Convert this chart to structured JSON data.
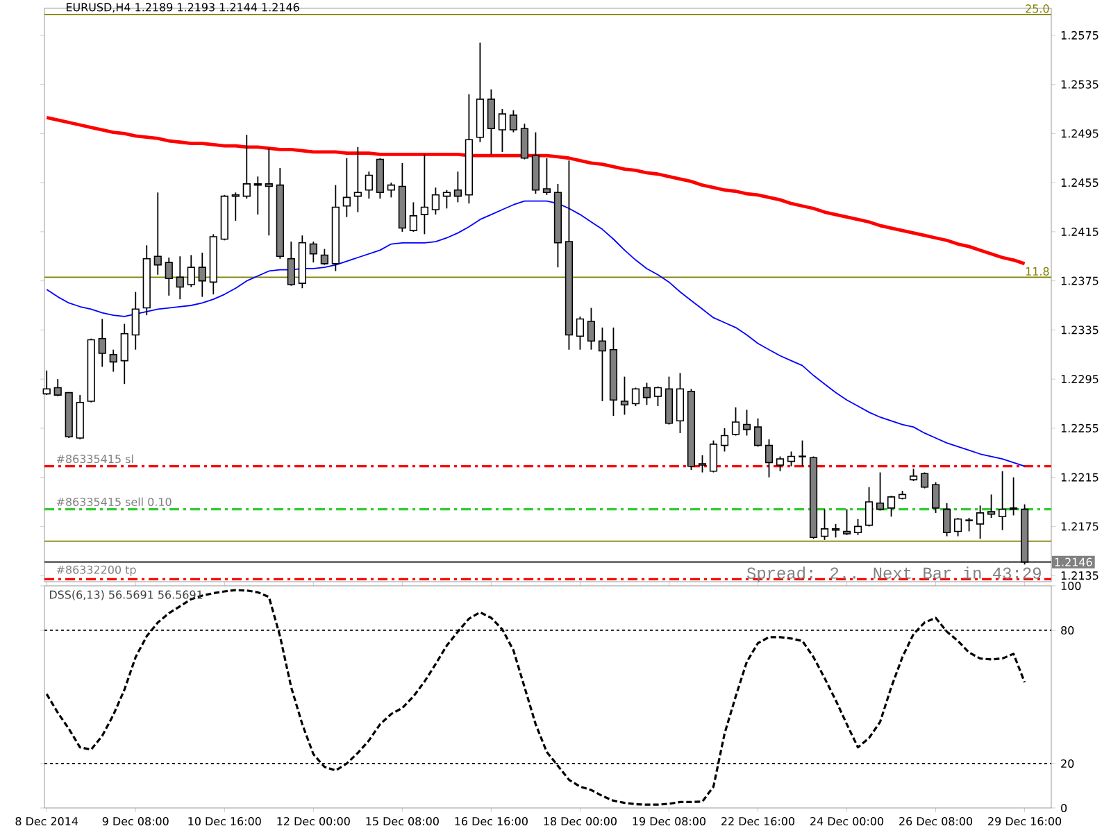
{
  "chart_data": [
    {
      "type": "candlestick",
      "title": "EURUSD,H4 1.2189 1.2193 1.2144 1.2146",
      "categories": [
        null,
        null,
        null,
        null,
        null,
        null,
        null,
        null,
        null,
        null,
        null,
        null,
        null,
        null,
        null,
        null,
        null,
        null,
        null,
        null,
        null,
        null,
        null,
        null,
        null,
        null,
        null,
        null,
        null,
        null,
        null,
        null,
        null,
        null,
        null,
        null,
        null,
        null,
        null,
        null,
        null,
        null,
        null,
        null,
        null,
        null,
        null,
        null,
        null,
        null,
        null,
        null,
        null,
        null,
        null,
        null,
        null,
        null,
        null,
        null,
        null,
        null,
        null,
        null,
        null,
        null,
        null,
        null,
        null,
        null,
        null,
        null,
        null,
        null,
        null,
        null,
        null,
        null,
        null,
        null,
        null,
        null,
        null,
        null,
        null,
        null,
        null,
        null,
        null
      ],
      "ohlc": [
        [
          1.2283,
          1.2302,
          1.2282,
          1.2287
        ],
        [
          1.2288,
          1.2295,
          1.2281,
          1.2282
        ],
        [
          1.2284,
          1.2284,
          1.2247,
          1.2248
        ],
        [
          1.2247,
          1.2282,
          1.2246,
          1.2276
        ],
        [
          1.2277,
          1.2328,
          1.2276,
          1.2327
        ],
        [
          1.2328,
          1.2344,
          1.2305,
          1.2316
        ],
        [
          1.2315,
          1.2319,
          1.2301,
          1.2309
        ],
        [
          1.231,
          1.234,
          1.2291,
          1.2332
        ],
        [
          1.2331,
          1.2366,
          1.2319,
          1.2352
        ],
        [
          1.2353,
          1.2404,
          1.2347,
          1.2393
        ],
        [
          1.2395,
          1.2447,
          1.238,
          1.2388
        ],
        [
          1.239,
          1.2394,
          1.2363,
          1.2377
        ],
        [
          1.2378,
          1.2395,
          1.236,
          1.237
        ],
        [
          1.2372,
          1.2396,
          1.237,
          1.2386
        ],
        [
          1.2386,
          1.2398,
          1.2362,
          1.2375
        ],
        [
          1.2374,
          1.2413,
          1.2364,
          1.2411
        ],
        [
          1.2409,
          1.2445,
          1.2408,
          1.2444
        ],
        [
          1.2444,
          1.2447,
          1.2424,
          1.2445
        ],
        [
          1.2444,
          1.2494,
          1.2442,
          1.2454
        ],
        [
          1.2454,
          1.246,
          1.2429,
          1.2453
        ],
        [
          1.2454,
          1.2483,
          1.2412,
          1.2452
        ],
        [
          1.2453,
          1.2467,
          1.2393,
          1.2395
        ],
        [
          1.2393,
          1.2407,
          1.2371,
          1.2372
        ],
        [
          1.2373,
          1.2412,
          1.2369,
          1.2406
        ],
        [
          1.2405,
          1.2407,
          1.239,
          1.2397
        ],
        [
          1.2396,
          1.2401,
          1.2388,
          1.2389
        ],
        [
          1.2389,
          1.2453,
          1.2383,
          1.2435
        ],
        [
          1.2436,
          1.2475,
          1.2427,
          1.2443
        ],
        [
          1.2444,
          1.2484,
          1.2431,
          1.2447
        ],
        [
          1.2449,
          1.2464,
          1.2442,
          1.2461
        ],
        [
          1.2474,
          1.2475,
          1.2442,
          1.2447
        ],
        [
          1.2449,
          1.2455,
          1.2443,
          1.2453
        ],
        [
          1.2452,
          1.2471,
          1.2415,
          1.2418
        ],
        [
          1.2416,
          1.2439,
          1.2415,
          1.2428
        ],
        [
          1.2429,
          1.2478,
          1.2413,
          1.2435
        ],
        [
          1.2433,
          1.2451,
          1.2429,
          1.2445
        ],
        [
          1.2444,
          1.2449,
          1.2434,
          1.2447
        ],
        [
          1.2449,
          1.2464,
          1.2439,
          1.2444
        ],
        [
          1.2445,
          1.2527,
          1.2438,
          1.249
        ],
        [
          1.2492,
          1.2569,
          1.2488,
          1.2523
        ],
        [
          1.2523,
          1.2531,
          1.2478,
          1.2499
        ],
        [
          1.2498,
          1.2515,
          1.248,
          1.2511
        ],
        [
          1.251,
          1.2514,
          1.2496,
          1.2498
        ],
        [
          1.2499,
          1.2503,
          1.2474,
          1.2475
        ],
        [
          1.2477,
          1.2496,
          1.2446,
          1.2449
        ],
        [
          1.245,
          1.2475,
          1.2445,
          1.2447
        ],
        [
          1.2447,
          1.2454,
          1.2386,
          1.2406
        ],
        [
          1.2407,
          1.2473,
          1.2319,
          1.2331
        ],
        [
          1.233,
          1.2346,
          1.2319,
          1.2344
        ],
        [
          1.2342,
          1.2353,
          1.2319,
          1.2326
        ],
        [
          1.2326,
          1.2337,
          1.2277,
          1.2318
        ],
        [
          1.2319,
          1.2337,
          1.2265,
          1.2278
        ],
        [
          1.2277,
          1.2297,
          1.2266,
          1.2274
        ],
        [
          1.2275,
          1.2288,
          1.2273,
          1.2287
        ],
        [
          1.2288,
          1.2292,
          1.2274,
          1.228
        ],
        [
          1.2281,
          1.2289,
          1.2273,
          1.2288
        ],
        [
          1.2287,
          1.2297,
          1.2258,
          1.2259
        ],
        [
          1.2261,
          1.23,
          1.2251,
          1.2287
        ],
        [
          1.2285,
          1.2287,
          1.2221,
          1.2224
        ],
        [
          1.2225,
          1.2233,
          1.2219,
          1.2226
        ],
        [
          1.222,
          1.2245,
          1.2219,
          1.2242
        ],
        [
          1.2241,
          1.2255,
          1.2236,
          1.2249
        ],
        [
          1.225,
          1.2272,
          1.2249,
          1.226
        ],
        [
          1.2258,
          1.227,
          1.2249,
          1.2254
        ],
        [
          1.2256,
          1.2263,
          1.224,
          1.2241
        ],
        [
          1.2241,
          1.2246,
          1.2215,
          1.2227
        ],
        [
          1.2225,
          1.2232,
          1.222,
          1.223
        ],
        [
          1.2228,
          1.2236,
          1.2224,
          1.2232
        ],
        [
          1.2232,
          1.2245,
          1.2224,
          1.2232
        ],
        [
          1.2231,
          1.2232,
          1.2165,
          1.2166
        ],
        [
          1.2167,
          1.2189,
          1.2164,
          1.2173
        ],
        [
          1.2173,
          1.2177,
          1.2166,
          1.2172
        ],
        [
          1.2171,
          1.2189,
          1.2168,
          1.2169
        ],
        [
          1.217,
          1.2181,
          1.2168,
          1.2175
        ],
        [
          1.2176,
          1.2207,
          1.2175,
          1.2195
        ],
        [
          1.2194,
          1.2219,
          1.2188,
          1.2189
        ],
        [
          1.219,
          1.22,
          1.2183,
          1.2199
        ],
        [
          1.2198,
          1.2204,
          1.2197,
          1.2201
        ],
        [
          1.2213,
          1.2222,
          1.2212,
          1.2216
        ],
        [
          1.2218,
          1.2219,
          1.2206,
          1.2207
        ],
        [
          1.2209,
          1.2211,
          1.2186,
          1.219
        ],
        [
          1.2189,
          1.2194,
          1.2167,
          1.217
        ],
        [
          1.2171,
          1.2182,
          1.2167,
          1.2181
        ],
        [
          1.218,
          1.2182,
          1.2171,
          1.218
        ],
        [
          1.2177,
          1.2192,
          1.2165,
          1.2186
        ],
        [
          1.2187,
          1.2201,
          1.2182,
          1.2185
        ],
        [
          1.2183,
          1.222,
          1.2172,
          1.2189
        ],
        [
          1.2189,
          1.2215,
          1.2184,
          1.219
        ],
        [
          1.2189,
          1.2193,
          1.2144,
          1.2146
        ]
      ],
      "series": [
        {
          "type": "line",
          "color": "#ff0000",
          "values": [
            1.2508,
            1.2506,
            1.2504,
            1.2502,
            1.25,
            1.2498,
            1.2496,
            1.2495,
            1.2493,
            1.2492,
            1.2491,
            1.2489,
            1.2488,
            1.2487,
            1.2487,
            1.2486,
            1.2485,
            1.2485,
            1.2484,
            1.2484,
            1.2483,
            1.2482,
            1.2482,
            1.2481,
            1.248,
            1.248,
            1.248,
            1.2479,
            1.2479,
            1.2479,
            1.2478,
            1.2478,
            1.2478,
            1.2478,
            1.2478,
            1.2478,
            1.2478,
            1.2478,
            1.2477,
            1.2477,
            1.2477,
            1.2477,
            1.2477,
            1.2477,
            1.2477,
            1.2477,
            1.2476,
            1.2475,
            1.2473,
            1.2471,
            1.247,
            1.2468,
            1.2466,
            1.2465,
            1.2463,
            1.2462,
            1.246,
            1.2458,
            1.2456,
            1.2453,
            1.2451,
            1.2449,
            1.2448,
            1.2446,
            1.2445,
            1.2443,
            1.2441,
            1.2438,
            1.2436,
            1.2434,
            1.2431,
            1.2429,
            1.2427,
            1.2425,
            1.2423,
            1.242,
            1.2418,
            1.2416,
            1.2414,
            1.2412,
            1.241,
            1.2408,
            1.2405,
            1.2403,
            1.24,
            1.2397,
            1.2394,
            1.2392,
            1.2389
          ]
        },
        {
          "type": "line",
          "color": "#0000ff",
          "values": [
            1.2368,
            1.2362,
            1.2357,
            1.2354,
            1.2352,
            1.2349,
            1.2347,
            1.2346,
            1.2348,
            1.235,
            1.2352,
            1.2353,
            1.2354,
            1.2355,
            1.2357,
            1.236,
            1.2364,
            1.2369,
            1.2375,
            1.2379,
            1.2383,
            1.2384,
            1.2384,
            1.2385,
            1.2385,
            1.2386,
            1.2388,
            1.2391,
            1.2394,
            1.2397,
            1.24,
            1.2405,
            1.2406,
            1.2406,
            1.2406,
            1.2407,
            1.241,
            1.2414,
            1.2419,
            1.2425,
            1.2429,
            1.2433,
            1.2437,
            1.244,
            1.244,
            1.244,
            1.2438,
            1.2434,
            1.2429,
            1.2423,
            1.2417,
            1.2409,
            1.24,
            1.2392,
            1.2385,
            1.238,
            1.2374,
            1.2366,
            1.2359,
            1.2352,
            1.2345,
            1.2341,
            1.2337,
            1.2331,
            1.2324,
            1.2319,
            1.2314,
            1.231,
            1.2306,
            1.2298,
            1.2291,
            1.2284,
            1.2278,
            1.2273,
            1.2268,
            1.2264,
            1.2261,
            1.2258,
            1.2256,
            1.2251,
            1.2247,
            1.2243,
            1.224,
            1.2237,
            1.2234,
            1.2232,
            1.223,
            1.2227,
            1.2224
          ]
        }
      ],
      "ylim": [
        1.213,
        1.2597
      ],
      "yticks": [
        1.2135,
        1.2175,
        1.2215,
        1.2255,
        1.2295,
        1.2335,
        1.2375,
        1.2415,
        1.2455,
        1.2495,
        1.2535,
        1.2575
      ],
      "ref_lines": [
        {
          "axis": "y",
          "value": 1.2592,
          "color": "#808000",
          "line_style": "solid"
        },
        {
          "axis": "y",
          "value": 1.2378,
          "color": "#808000",
          "line_style": "solid"
        },
        {
          "axis": "y",
          "value": 1.2163,
          "color": "#808000",
          "line_style": "solid"
        },
        {
          "axis": "y",
          "value": 1.2146,
          "label": "1.2146",
          "color": "#000000",
          "line_style": "solid"
        },
        {
          "axis": "y",
          "value": 1.2224,
          "label": "#86335415 sl",
          "color": "#ff0000",
          "line_style": "dashed"
        },
        {
          "axis": "y",
          "value": 1.2189,
          "label": "#86335415 sell 0.10",
          "color": "#32cd32",
          "line_style": "dashed"
        },
        {
          "axis": "y",
          "value": 1.2132,
          "label": "#86332200 tp",
          "color": "#ff0000",
          "line_style": "dashed"
        }
      ],
      "annotations": [
        "Spread: 2.. Next Bar in 43:29",
        {
          "text": "25.0",
          "y": 1.2592
        },
        {
          "text": "11.8",
          "y": 1.2378
        }
      ],
      "tick_labels": "y"
    },
    {
      "type": "line",
      "title": "DSS(6,13) 56.5691 56.5691",
      "categories": [
        "8 Dec 2014",
        null,
        null,
        null,
        null,
        null,
        null,
        null,
        "9 Dec 08:00",
        null,
        null,
        null,
        null,
        null,
        null,
        null,
        "10 Dec 16:00",
        null,
        null,
        null,
        null,
        null,
        null,
        null,
        "12 Dec 00:00",
        null,
        null,
        null,
        null,
        null,
        null,
        null,
        "15 Dec 08:00",
        null,
        null,
        null,
        null,
        null,
        null,
        null,
        "16 Dec 16:00",
        null,
        null,
        null,
        null,
        null,
        null,
        null,
        "18 Dec 00:00",
        null,
        null,
        null,
        null,
        null,
        null,
        null,
        "19 Dec 08:00",
        null,
        null,
        null,
        null,
        null,
        null,
        null,
        "22 Dec 16:00",
        null,
        null,
        null,
        null,
        null,
        null,
        null,
        "24 Dec 00:00",
        null,
        null,
        null,
        null,
        null,
        null,
        null,
        "26 Dec 08:00",
        null,
        null,
        null,
        null,
        null,
        null,
        null,
        "29 Dec 16:00"
      ],
      "series": [
        {
          "color": "#000000",
          "values": [
            51.3,
            42.9,
            35.6,
            27.3,
            26.3,
            32.5,
            41.9,
            53.3,
            67.9,
            77.3,
            83.5,
            87.7,
            90.8,
            94.0,
            95.6,
            96.7,
            97.5,
            98.1,
            97.9,
            97.1,
            95.0,
            77.3,
            54.4,
            37.7,
            24.2,
            18.5,
            16.9,
            20.0,
            24.8,
            30.4,
            37.7,
            42.3,
            45.0,
            50.2,
            56.9,
            64.8,
            73.1,
            79.4,
            85.2,
            88.1,
            85.6,
            80.4,
            71.0,
            54.4,
            37.7,
            25.2,
            19.0,
            12.7,
            9.6,
            8.1,
            5.4,
            3.3,
            2.3,
            1.7,
            1.5,
            1.5,
            1.9,
            2.7,
            2.7,
            2.9,
            9.6,
            33.5,
            50.2,
            65.8,
            74.2,
            76.9,
            76.9,
            76.3,
            75.2,
            67.9,
            58.5,
            48.5,
            37.7,
            27.3,
            31.5,
            38.8,
            54.4,
            67.9,
            78.3,
            83.5,
            85.6,
            79.4,
            75.2,
            70.0,
            67.3,
            66.9,
            67.3,
            69.4,
            56.6
          ]
        }
      ],
      "line_style": "dashed",
      "ylim": [
        0,
        100
      ],
      "yticks": [
        0,
        20,
        80,
        100
      ],
      "ref_lines": [
        {
          "axis": "y",
          "value": 20,
          "color": "#000000",
          "line_style": "dotted"
        },
        {
          "axis": "y",
          "value": 80,
          "color": "#000000",
          "line_style": "dotted"
        }
      ]
    }
  ]
}
